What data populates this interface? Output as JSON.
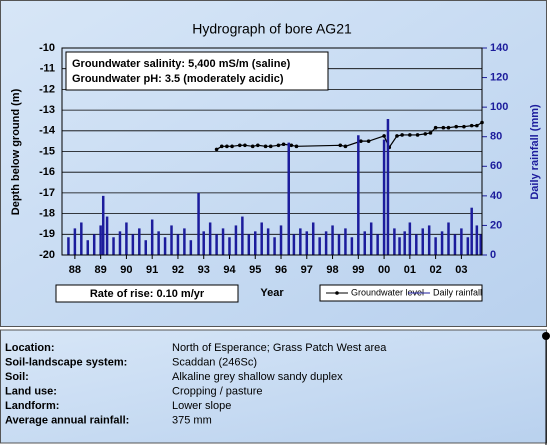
{
  "chart_data": {
    "type": "hydrograph",
    "title": "Hydrograph of bore AG21",
    "y_label": "Depth below ground (m)",
    "y2_label": "Daily rainfall (mm)",
    "x_label": "Year",
    "annotations": [
      "Groundwater salinity: 5,400 mS/m (saline)",
      "Groundwater pH: 3.5 (moderately acidic)",
      "Rate of rise: 0.10 m/yr"
    ],
    "xlim": [
      1987.5,
      2003.8
    ],
    "xticks": [
      {
        "value": 1988,
        "label": "88"
      },
      {
        "value": 1989,
        "label": "89"
      },
      {
        "value": 1990,
        "label": "90"
      },
      {
        "value": 1991,
        "label": "91"
      },
      {
        "value": 1992,
        "label": "92"
      },
      {
        "value": 1993,
        "label": "93"
      },
      {
        "value": 1994,
        "label": "94"
      },
      {
        "value": 1995,
        "label": "95"
      },
      {
        "value": 1996,
        "label": "96"
      },
      {
        "value": 1997,
        "label": "97"
      },
      {
        "value": 1998,
        "label": "98"
      },
      {
        "value": 1999,
        "label": "99"
      },
      {
        "value": 2000,
        "label": "00"
      },
      {
        "value": 2001,
        "label": "01"
      },
      {
        "value": 2002,
        "label": "02"
      },
      {
        "value": 2003,
        "label": "03"
      }
    ],
    "ylim": [
      -20,
      -10
    ],
    "yticks": [
      -10,
      -11,
      -12,
      -13,
      -14,
      -15,
      -16,
      -17,
      -18,
      -19,
      -20
    ],
    "y2lim": [
      0,
      140
    ],
    "y2ticks": [
      0,
      20,
      40,
      60,
      80,
      100,
      120,
      140
    ],
    "grid": true,
    "series": [
      {
        "name": "Groundwater level",
        "color": "#000000",
        "x": [
          1993.5,
          1993.7,
          1993.9,
          1994.1,
          1994.4,
          1994.6,
          1994.9,
          1995.1,
          1995.4,
          1995.6,
          1995.9,
          1996.1,
          1996.4,
          1996.6,
          1998.3,
          1998.5,
          1999.1,
          1999.4,
          2000.0,
          2000.2,
          2000.5,
          2000.7,
          2001.0,
          2001.3,
          2001.6,
          2001.8,
          2002.0,
          2002.3,
          2002.5,
          2002.8,
          2003.1,
          2003.4,
          2003.6,
          2003.8
        ],
        "values": [
          -14.9,
          -14.75,
          -14.75,
          -14.75,
          -14.7,
          -14.7,
          -14.75,
          -14.7,
          -14.75,
          -14.75,
          -14.7,
          -14.65,
          -14.7,
          -14.75,
          -14.7,
          -14.75,
          -14.5,
          -14.5,
          -14.25,
          -14.8,
          -14.25,
          -14.2,
          -14.2,
          -14.2,
          -14.15,
          -14.1,
          -13.85,
          -13.85,
          -13.85,
          -13.8,
          -13.8,
          -13.75,
          -13.75,
          -13.6
        ]
      },
      {
        "name": "Daily rainfall",
        "color": "#1c1c9c",
        "axis": "y2",
        "x": [
          1987.75,
          1988.0,
          1988.25,
          1988.5,
          1988.75,
          1989.0,
          1989.1,
          1989.25,
          1989.5,
          1989.75,
          1990.0,
          1990.25,
          1990.5,
          1990.75,
          1991.0,
          1991.25,
          1991.5,
          1991.75,
          1992.0,
          1992.25,
          1992.5,
          1992.8,
          1993.0,
          1993.25,
          1993.5,
          1993.75,
          1994.0,
          1994.25,
          1994.5,
          1994.75,
          1995.0,
          1995.25,
          1995.5,
          1995.75,
          1996.0,
          1996.3,
          1996.5,
          1996.75,
          1997.0,
          1997.25,
          1997.5,
          1997.75,
          1998.0,
          1998.25,
          1998.5,
          1998.75,
          1999.0,
          1999.25,
          1999.5,
          1999.75,
          2000.0,
          2000.15,
          2000.4,
          2000.6,
          2000.8,
          2001.0,
          2001.25,
          2001.5,
          2001.75,
          2002.0,
          2002.25,
          2002.5,
          2002.75,
          2003.0,
          2003.25,
          2003.4,
          2003.6,
          2003.75
        ],
        "values": [
          12,
          18,
          22,
          10,
          14,
          20,
          40,
          26,
          12,
          16,
          22,
          14,
          18,
          10,
          24,
          16,
          12,
          20,
          14,
          18,
          10,
          42,
          16,
          22,
          14,
          18,
          12,
          20,
          26,
          14,
          16,
          22,
          18,
          12,
          20,
          76,
          14,
          18,
          16,
          22,
          12,
          16,
          20,
          14,
          18,
          12,
          81,
          16,
          22,
          14,
          78,
          92,
          18,
          12,
          16,
          22,
          14,
          18,
          20,
          12,
          16,
          22,
          14,
          18,
          12,
          32,
          20,
          14
        ]
      }
    ]
  },
  "info": {
    "rows": [
      [
        "Location:",
        "North of Esperance; Grass Patch West area"
      ],
      [
        "Soil-landscape system:",
        "Scaddan (246Sc)"
      ],
      [
        "Soil:",
        "Alkaline grey shallow sandy duplex"
      ],
      [
        "Land use:",
        "Cropping / pasture"
      ],
      [
        "Landform:",
        "Lower slope"
      ],
      [
        "Average annual rainfall:",
        "375 mm"
      ]
    ]
  }
}
